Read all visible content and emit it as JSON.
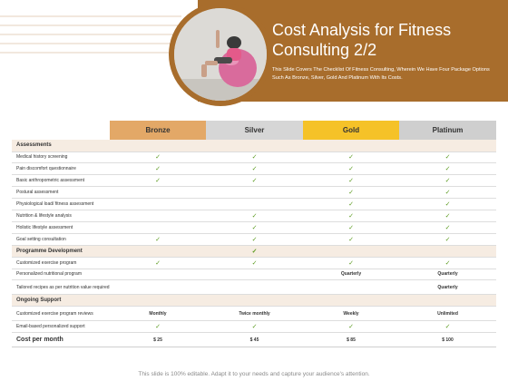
{
  "header": {
    "title_line1": "Cost Analysis for Fitness",
    "title_line2": "Consulting 2/2",
    "subtitle": "This Slide Covers The Checklist Of Fitness Consulting, Wherein We Have Four Package Options Such As Bronze, Silver, Gold And Platinum With Its Costs."
  },
  "colors": {
    "header_band": "#a86d2c",
    "bronze": "#e3a867",
    "silver": "#d6d6d6",
    "gold": "#f5c228",
    "platinum": "#cfcfcf",
    "section_row": "#f6ece2",
    "check": "#5a9a1e"
  },
  "table": {
    "columns": [
      "Bronze",
      "Silver",
      "Gold",
      "Platinum"
    ],
    "rows": [
      {
        "type": "section",
        "label": "Assessments",
        "cells": [
          "",
          "",
          "",
          ""
        ]
      },
      {
        "type": "item",
        "label": "Medical history screening",
        "cells": [
          "✓",
          "✓",
          "✓",
          "✓"
        ]
      },
      {
        "type": "item",
        "label": "Pain discomfort questionnaire",
        "cells": [
          "✓",
          "✓",
          "✓",
          "✓"
        ]
      },
      {
        "type": "item",
        "label": "Basic anthropometric assessment",
        "cells": [
          "✓",
          "✓",
          "✓",
          "✓"
        ]
      },
      {
        "type": "item",
        "label": "Postural assessment",
        "cells": [
          "",
          "",
          "✓",
          "✓"
        ]
      },
      {
        "type": "item",
        "label": "Physiological load/ fitness assessment",
        "cells": [
          "",
          "",
          "✓",
          "✓"
        ]
      },
      {
        "type": "item",
        "label": "Nutrition & lifestyle analysis",
        "cells": [
          "",
          "✓",
          "✓",
          "✓"
        ]
      },
      {
        "type": "item",
        "label": "Holistic lifestyle assessment",
        "cells": [
          "",
          "✓",
          "✓",
          "✓"
        ]
      },
      {
        "type": "item",
        "label": "Goal setting consultation",
        "cells": [
          "✓",
          "✓",
          "✓",
          "✓"
        ]
      },
      {
        "type": "section",
        "label": "Programme Development",
        "cells": [
          "",
          "✓",
          "",
          ""
        ]
      },
      {
        "type": "item",
        "label": "Customized exercise program",
        "cells": [
          "✓",
          "✓",
          "✓",
          "✓"
        ]
      },
      {
        "type": "item",
        "label": "Personalized nutritional program",
        "cells": [
          "",
          "",
          "Quarterly",
          "Quarterly"
        ]
      },
      {
        "type": "tall",
        "label": "Tailored recipes as per nutrition value required",
        "cells": [
          "",
          "",
          "",
          "Quarterly"
        ]
      },
      {
        "type": "section",
        "label": "Ongoing Support",
        "cells": [
          "",
          "",
          "",
          ""
        ]
      },
      {
        "type": "tall",
        "label": "Customized exercise program reviews",
        "cells": [
          "Monthly",
          "Twice monthly",
          "Weekly",
          "Unlimited"
        ]
      },
      {
        "type": "item",
        "label": "Email-based personalized support",
        "cells": [
          "✓",
          "✓",
          "✓",
          "✓"
        ]
      },
      {
        "type": "cost",
        "label": "Cost per month",
        "cells": [
          "$ 25",
          "$ 45",
          "$ 85",
          "$ 100"
        ]
      }
    ]
  },
  "footer": "This slide is 100% editable. Adapt it to your needs and capture your audience's attention."
}
